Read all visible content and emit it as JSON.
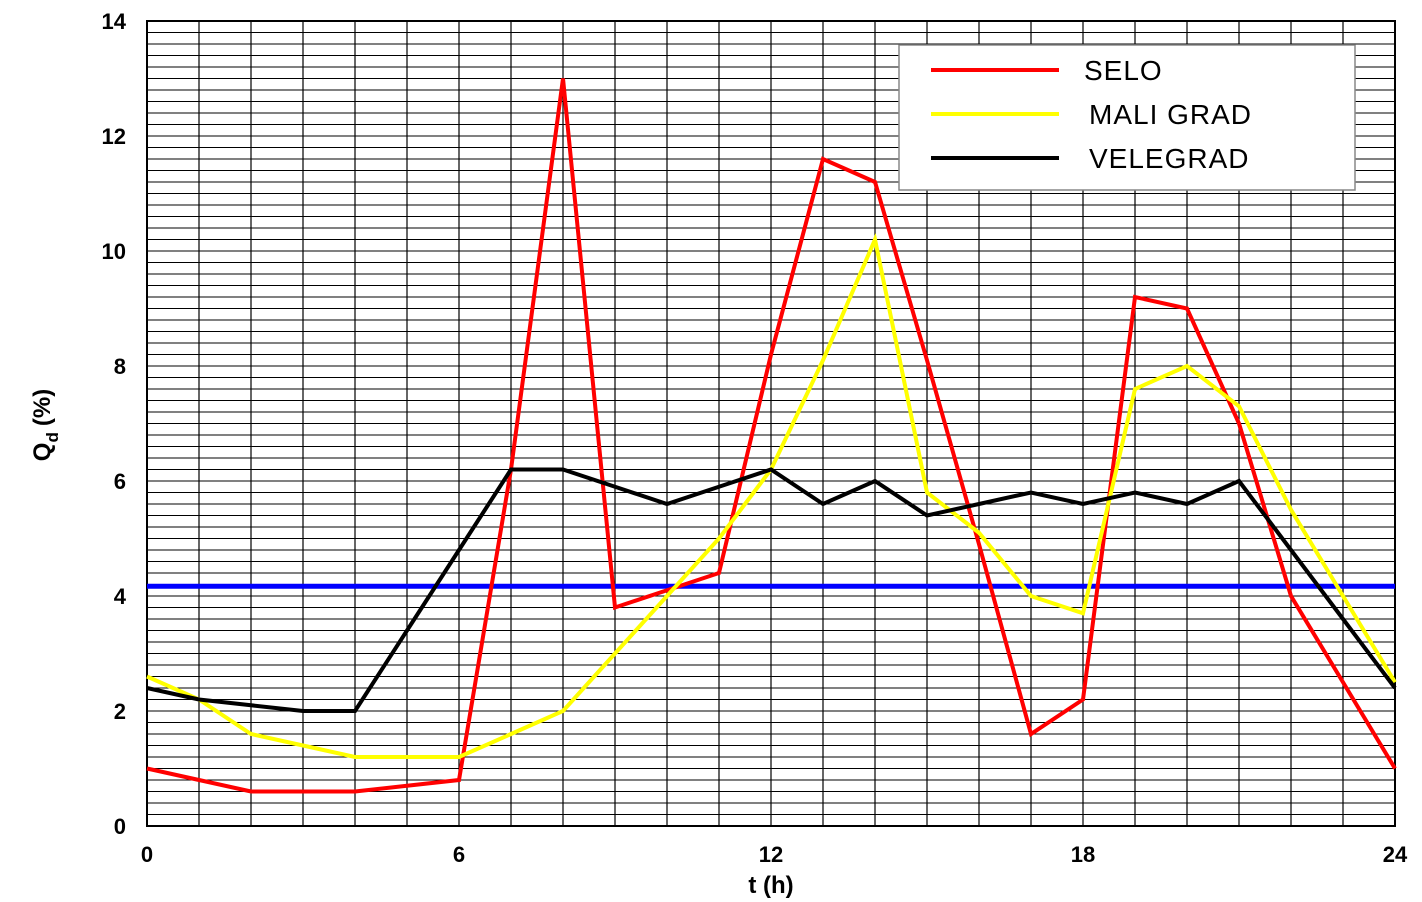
{
  "chart_data": {
    "type": "line",
    "x": [
      0,
      1,
      2,
      3,
      4,
      5,
      6,
      7,
      8,
      9,
      10,
      11,
      12,
      13,
      14,
      15,
      16,
      17,
      18,
      19,
      20,
      21,
      22,
      23,
      24
    ],
    "series": [
      {
        "name": "SELO",
        "color": "#ff0000",
        "values": [
          1.0,
          0.8,
          0.6,
          0.6,
          0.6,
          0.7,
          0.8,
          6.2,
          13.0,
          3.8,
          4.1,
          4.4,
          8.2,
          11.6,
          11.2,
          8.1,
          4.9,
          1.6,
          2.2,
          9.2,
          9.0,
          7.0,
          4.0,
          2.5,
          1.0
        ]
      },
      {
        "name": "MALI GRAD",
        "color": "#ffff00",
        "values": [
          2.6,
          2.2,
          1.6,
          1.4,
          1.2,
          1.2,
          1.2,
          1.6,
          2.0,
          3.0,
          4.0,
          5.0,
          6.2,
          8.1,
          10.2,
          5.8,
          5.1,
          4.0,
          3.7,
          7.6,
          8.0,
          7.3,
          5.5,
          4.0,
          2.5
        ]
      },
      {
        "name": "VELEGRAD",
        "color": "#000000",
        "values": [
          2.4,
          2.2,
          2.1,
          2.0,
          2.0,
          3.4,
          4.8,
          6.2,
          6.2,
          5.9,
          5.6,
          5.9,
          6.2,
          5.6,
          6.0,
          5.4,
          5.6,
          5.8,
          5.6,
          5.8,
          5.6,
          6.0,
          4.8,
          3.6,
          2.4
        ]
      }
    ],
    "reference_lines": [
      {
        "value": 4.17,
        "color": "#0000ff"
      }
    ],
    "xlabel": "t (h)",
    "ylabel": "Q",
    "ylabel_subscript": "d",
    "ylabel_unit": "(%)",
    "xlim": [
      0,
      24
    ],
    "ylim": [
      0,
      14
    ],
    "x_ticks": [
      0,
      6,
      12,
      18,
      24
    ],
    "y_ticks": [
      0,
      2,
      4,
      6,
      8,
      10,
      12,
      14
    ],
    "grid": true,
    "legend_position": "top-right"
  }
}
